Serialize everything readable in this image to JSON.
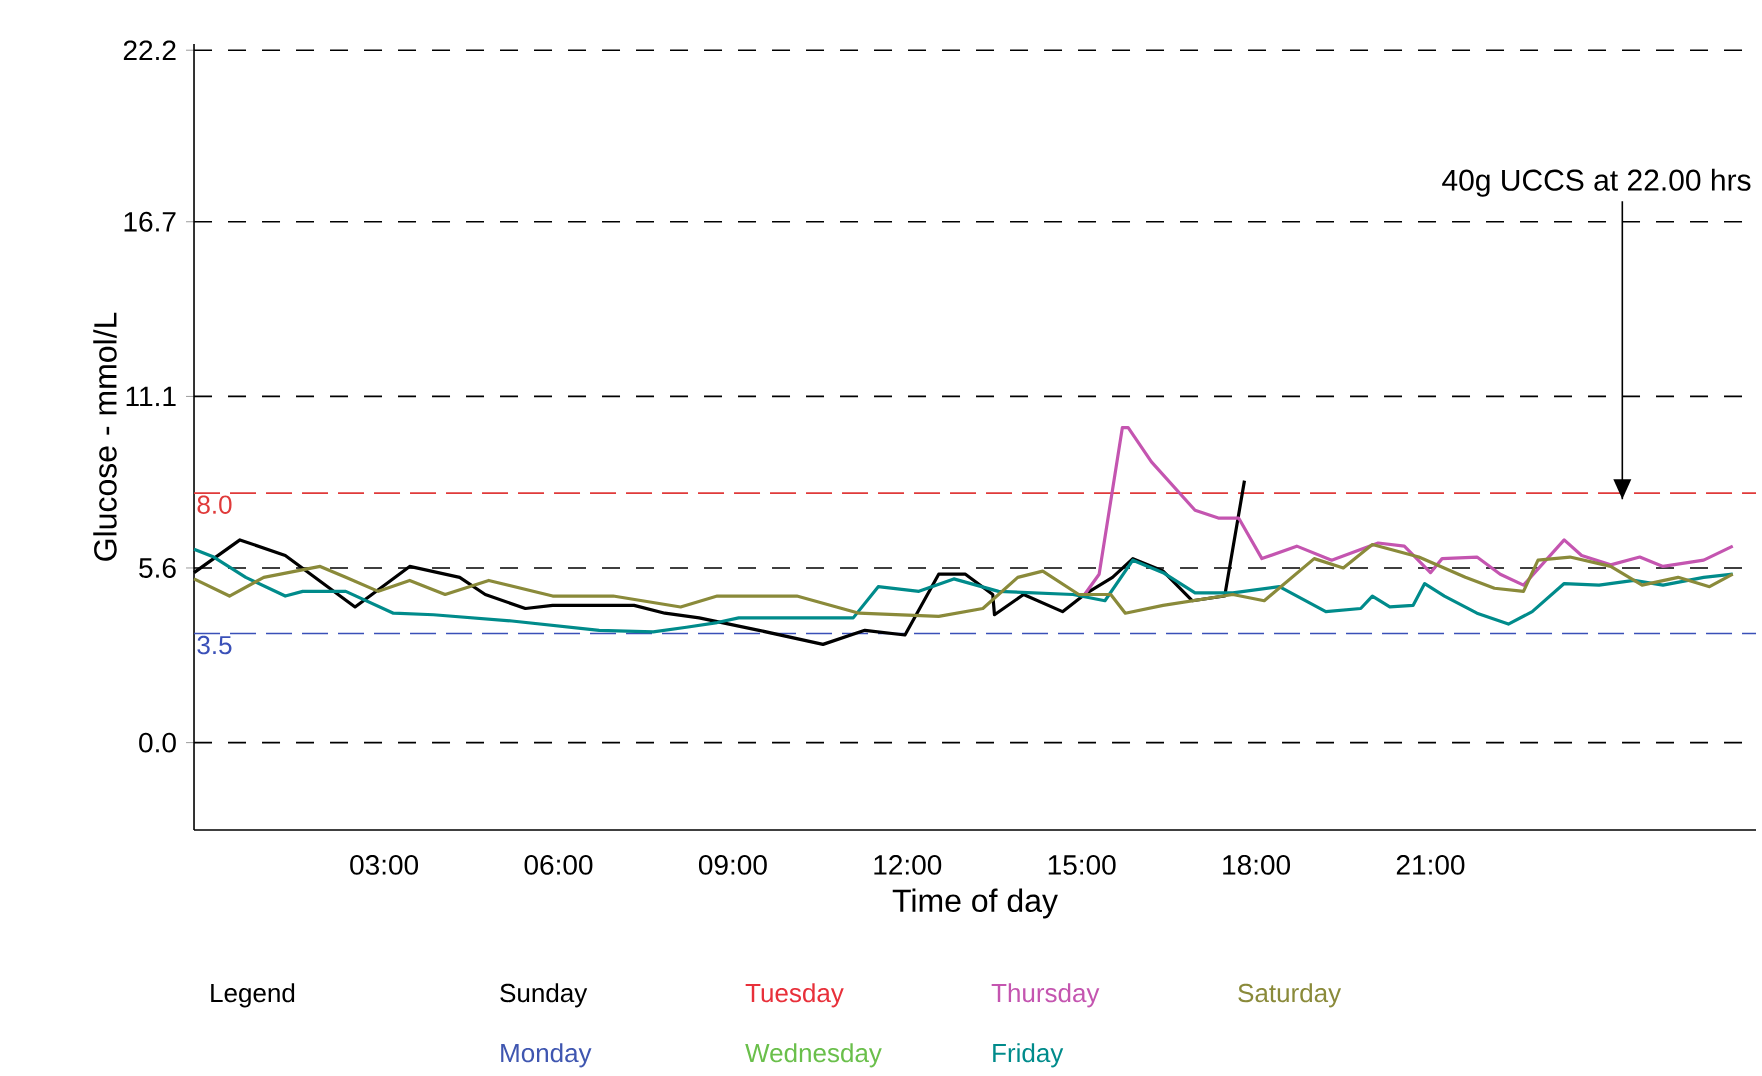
{
  "chart_data": {
    "type": "line",
    "xlabel": "Time of day",
    "ylabel": "Glucose - mmol/L",
    "legend_title": "Legend",
    "xlim": [
      -0.27,
      26.6
    ],
    "ylim": [
      -2.8,
      22.4
    ],
    "xticks": [
      {
        "value": 3,
        "label": "03:00"
      },
      {
        "value": 6,
        "label": "06:00"
      },
      {
        "value": 9,
        "label": "09:00"
      },
      {
        "value": 12,
        "label": "12:00"
      },
      {
        "value": 15,
        "label": "15:00"
      },
      {
        "value": 18,
        "label": "18:00"
      },
      {
        "value": 21,
        "label": "21:00"
      }
    ],
    "yticks": [
      {
        "value": 0,
        "label": "0.0"
      },
      5.6,
      11.1,
      16.7,
      22.2
    ],
    "grid": "y",
    "legend": "bottom",
    "marker": "none",
    "line_style": "solid",
    "ref_lines": [
      {
        "axis": "y",
        "value": 8.0,
        "label": "8.0",
        "color": "#e03a3a",
        "line_style": "dashed"
      },
      {
        "axis": "y",
        "value": 3.5,
        "label": "3.5",
        "color": "#3a50b8",
        "line_style": "dashed"
      }
    ],
    "annotations": [
      {
        "text": "40g UCCS at 22.00 hrs",
        "x": 24.3,
        "y": 7.8
      }
    ],
    "series": [
      {
        "name": "Sunday",
        "color": "#000000",
        "x": [
          -0.27,
          0.52,
          1.3,
          2.5,
          3.44,
          4.3,
          4.74,
          5.43,
          5.9,
          7.3,
          7.83,
          8.42,
          9.45,
          10.55,
          11.27,
          11.96,
          12.54,
          13.0,
          13.47,
          13.5,
          14.0,
          14.67,
          15.05,
          15.53,
          15.88,
          16.4,
          16.9,
          17.46,
          17.8
        ],
        "values": [
          5.45,
          6.5,
          6.0,
          4.35,
          5.65,
          5.3,
          4.75,
          4.3,
          4.4,
          4.4,
          4.15,
          4.0,
          3.6,
          3.15,
          3.6,
          3.45,
          5.4,
          5.4,
          4.75,
          4.1,
          4.75,
          4.2,
          4.75,
          5.3,
          5.9,
          5.5,
          4.55,
          4.7,
          8.4
        ]
      },
      {
        "name": "Monday",
        "color": "#3f56b0"
      },
      {
        "name": "Tuesday",
        "color": "#e8303a"
      },
      {
        "name": "Wednesday",
        "color": "#6abf4b"
      },
      {
        "name": "Thursday",
        "color": "#c455b0",
        "x": [
          15.05,
          15.3,
          15.7,
          15.8,
          16.2,
          16.95,
          17.35,
          17.7,
          18.1,
          18.7,
          19.3,
          20.1,
          20.55,
          21.0,
          21.2,
          21.8,
          22.2,
          22.6,
          23.3,
          23.6,
          24.1,
          24.6,
          25.0,
          25.7,
          26.2
        ],
        "values": [
          4.75,
          5.4,
          10.1,
          10.1,
          9.0,
          7.45,
          7.2,
          7.2,
          5.9,
          6.3,
          5.85,
          6.4,
          6.3,
          5.45,
          5.9,
          5.95,
          5.4,
          5.05,
          6.5,
          6.0,
          5.7,
          5.95,
          5.65,
          5.85,
          6.3
        ]
      },
      {
        "name": "Friday",
        "color": "#008b8b",
        "x": [
          -0.27,
          0.07,
          0.62,
          1.3,
          1.6,
          2.34,
          3.16,
          3.85,
          5.2,
          6.7,
          7.63,
          8.2,
          8.73,
          9.1,
          10.1,
          11.07,
          11.5,
          12.2,
          12.8,
          13.57,
          14.85,
          15.4,
          15.88,
          16.4,
          16.95,
          17.6,
          18.4,
          19.2,
          19.8,
          20.0,
          20.3,
          20.7,
          20.9,
          21.24,
          21.8,
          22.34,
          22.75,
          23.3,
          23.9,
          24.5,
          25.0,
          25.7,
          26.2
        ],
        "values": [
          6.2,
          5.95,
          5.3,
          4.7,
          4.85,
          4.85,
          4.15,
          4.1,
          3.9,
          3.6,
          3.55,
          3.7,
          3.85,
          4.0,
          4.0,
          4.0,
          5.0,
          4.85,
          5.25,
          4.85,
          4.75,
          4.55,
          5.85,
          5.45,
          4.8,
          4.8,
          5.0,
          4.2,
          4.3,
          4.7,
          4.35,
          4.4,
          5.1,
          4.7,
          4.15,
          3.8,
          4.2,
          5.1,
          5.05,
          5.2,
          5.05,
          5.3,
          5.4
        ]
      },
      {
        "name": "Saturday",
        "color": "#8a8a3a",
        "x": [
          -0.27,
          0.34,
          0.93,
          1.9,
          2.34,
          2.9,
          3.44,
          4.05,
          4.8,
          5.9,
          6.94,
          8.1,
          8.73,
          10.1,
          11.17,
          12.54,
          13.3,
          13.9,
          14.33,
          14.95,
          15.5,
          15.75,
          16.4,
          17.6,
          18.14,
          19.0,
          19.5,
          20.0,
          20.8,
          21.6,
          22.1,
          22.6,
          22.85,
          23.4,
          24.1,
          24.64,
          25.26,
          25.8,
          26.2
        ],
        "values": [
          5.25,
          4.7,
          5.3,
          5.65,
          5.3,
          4.85,
          5.2,
          4.75,
          5.2,
          4.7,
          4.7,
          4.35,
          4.7,
          4.7,
          4.15,
          4.05,
          4.3,
          5.3,
          5.5,
          4.75,
          4.75,
          4.15,
          4.4,
          4.75,
          4.55,
          5.9,
          5.6,
          6.35,
          5.95,
          5.3,
          4.95,
          4.85,
          5.85,
          5.95,
          5.65,
          5.05,
          5.3,
          5.0,
          5.4
        ]
      }
    ]
  }
}
